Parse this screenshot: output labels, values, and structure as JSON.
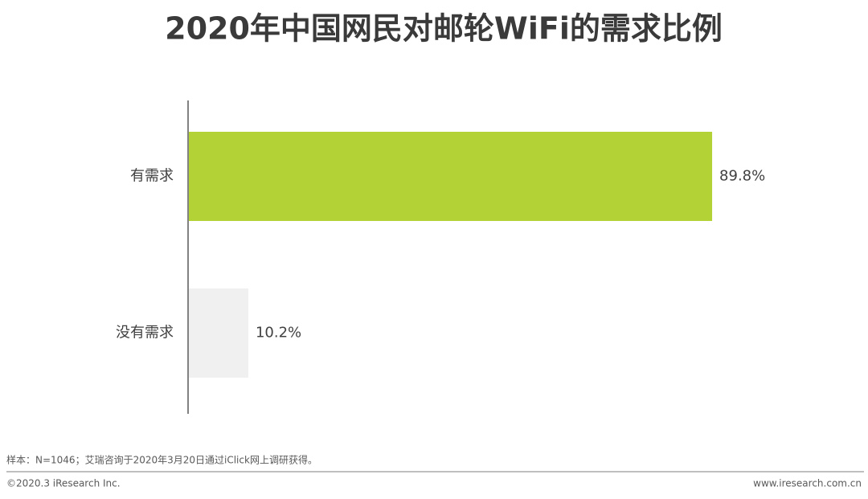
{
  "chart_data": {
    "type": "bar",
    "orientation": "horizontal",
    "title": "2020年中国网民对邮轮WiFi的需求比例",
    "categories": [
      "有需求",
      "没有需求"
    ],
    "values": [
      89.8,
      10.2
    ],
    "value_labels": [
      "89.8%",
      "10.2%"
    ],
    "colors": [
      "#b2d235",
      "#f0f0f0"
    ]
  },
  "footer": {
    "note": "样本：N=1046；艾瑞咨询于2020年3月20日通过iClick网上调研获得。",
    "copyright": "©2020.3 iResearch Inc.",
    "website": "www.iresearch.com.cn"
  }
}
